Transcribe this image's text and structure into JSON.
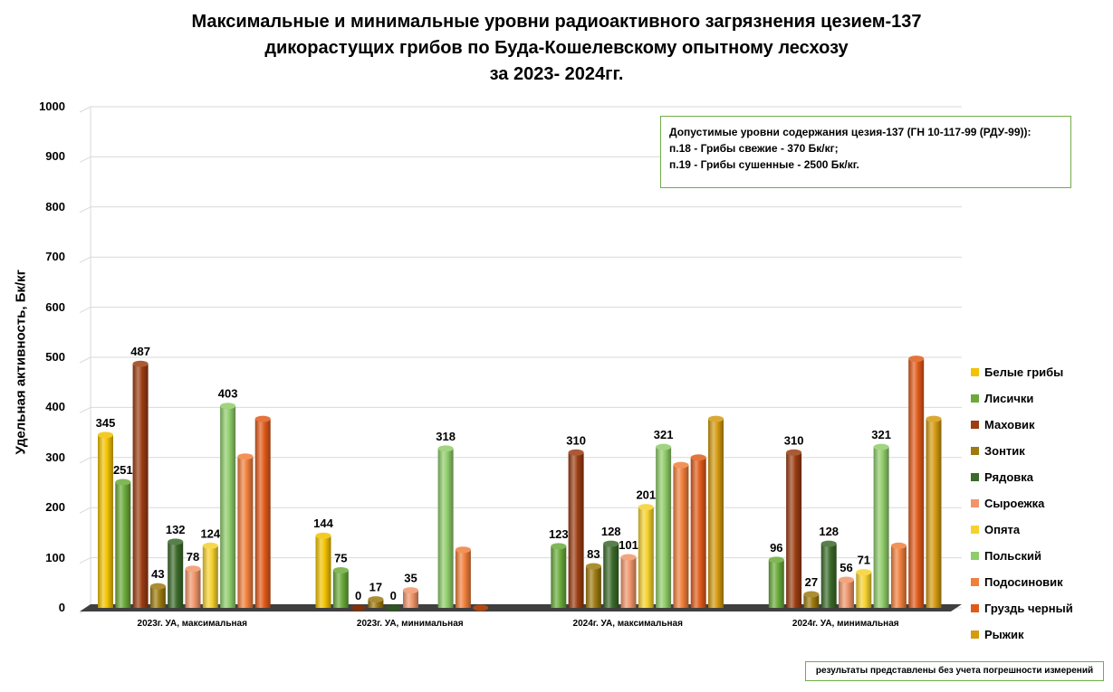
{
  "title_lines": [
    "Максимальные и минимальные уровни радиоактивного загрязнения цезием-137",
    "дикорастущих грибов по Буда-Кошелевскому опытному лесхозу",
    "за 2023- 2024гг."
  ],
  "note_lines": [
    "Допустимые уровни содержания цезия-137 (ГН 10-117-99 (РДУ-99)):",
    "п.18 - Грибы свежие - 370 Бк/кг;",
    "п.19 - Грибы сушенные - 2500 Бк/кг."
  ],
  "footnote": "результаты представлены без учета погрешности измерений",
  "chart_data": {
    "type": "bar",
    "ylabel": "Удельная активность, Бк/кг",
    "xlabel": "",
    "ylim": [
      0,
      1000
    ],
    "yticks": [
      "0",
      "100",
      "200",
      "300",
      "400",
      "500",
      "600",
      "700",
      "800",
      "900",
      "1000"
    ],
    "grid": true,
    "legend_position": "right",
    "categories": [
      "2023г. УА, максимальная",
      "2023г. УА, минимальная",
      "2024г. УА, максимальная",
      "2024г. УА, минимальная"
    ],
    "series": [
      {
        "name": "Белые грибы",
        "color": "#f2c200",
        "values": [
          345,
          144,
          null,
          null
        ],
        "labels": [
          "345",
          "144",
          "",
          ""
        ]
      },
      {
        "name": "Лисички",
        "color": "#6aaa3a",
        "values": [
          251,
          75,
          123,
          96
        ],
        "labels": [
          "251",
          "75",
          "123",
          "96"
        ]
      },
      {
        "name": "Маховик",
        "color": "#9c3d12",
        "values": [
          487,
          0,
          310,
          310
        ],
        "labels": [
          "487",
          "0",
          "310",
          "310"
        ]
      },
      {
        "name": "Зонтик",
        "color": "#9c7a10",
        "values": [
          43,
          17,
          83,
          27
        ],
        "labels": [
          "43",
          "17",
          "83",
          "27"
        ]
      },
      {
        "name": "Рядовка",
        "color": "#3b6a2a",
        "values": [
          132,
          0,
          128,
          128
        ],
        "labels": [
          "132",
          "0",
          "128",
          "128"
        ]
      },
      {
        "name": "Сыроежка",
        "color": "#f0956a",
        "values": [
          78,
          35,
          101,
          56
        ],
        "labels": [
          "78",
          "35",
          "101",
          "56"
        ]
      },
      {
        "name": "Опята",
        "color": "#f5d12e",
        "values": [
          124,
          null,
          201,
          71
        ],
        "labels": [
          "124",
          "",
          "201",
          "71"
        ]
      },
      {
        "name": "Польский",
        "color": "#8fcc6a",
        "values": [
          403,
          318,
          321,
          321
        ],
        "labels": [
          "403",
          "318",
          "321",
          "321"
        ]
      },
      {
        "name": "Подосиновик",
        "color": "#f07f3c",
        "values": [
          302,
          116,
          285,
          124
        ],
        "labels": [
          "",
          "",
          "",
          ""
        ]
      },
      {
        "name": "Груздь черный",
        "color": "#e05a1a",
        "values": [
          377,
          0,
          300,
          497
        ],
        "labels": [
          "",
          "",
          "",
          ""
        ]
      },
      {
        "name": "Рыжик",
        "color": "#d49a10",
        "values": [
          null,
          null,
          377,
          377
        ],
        "labels": [
          "",
          "",
          "",
          ""
        ]
      }
    ]
  }
}
